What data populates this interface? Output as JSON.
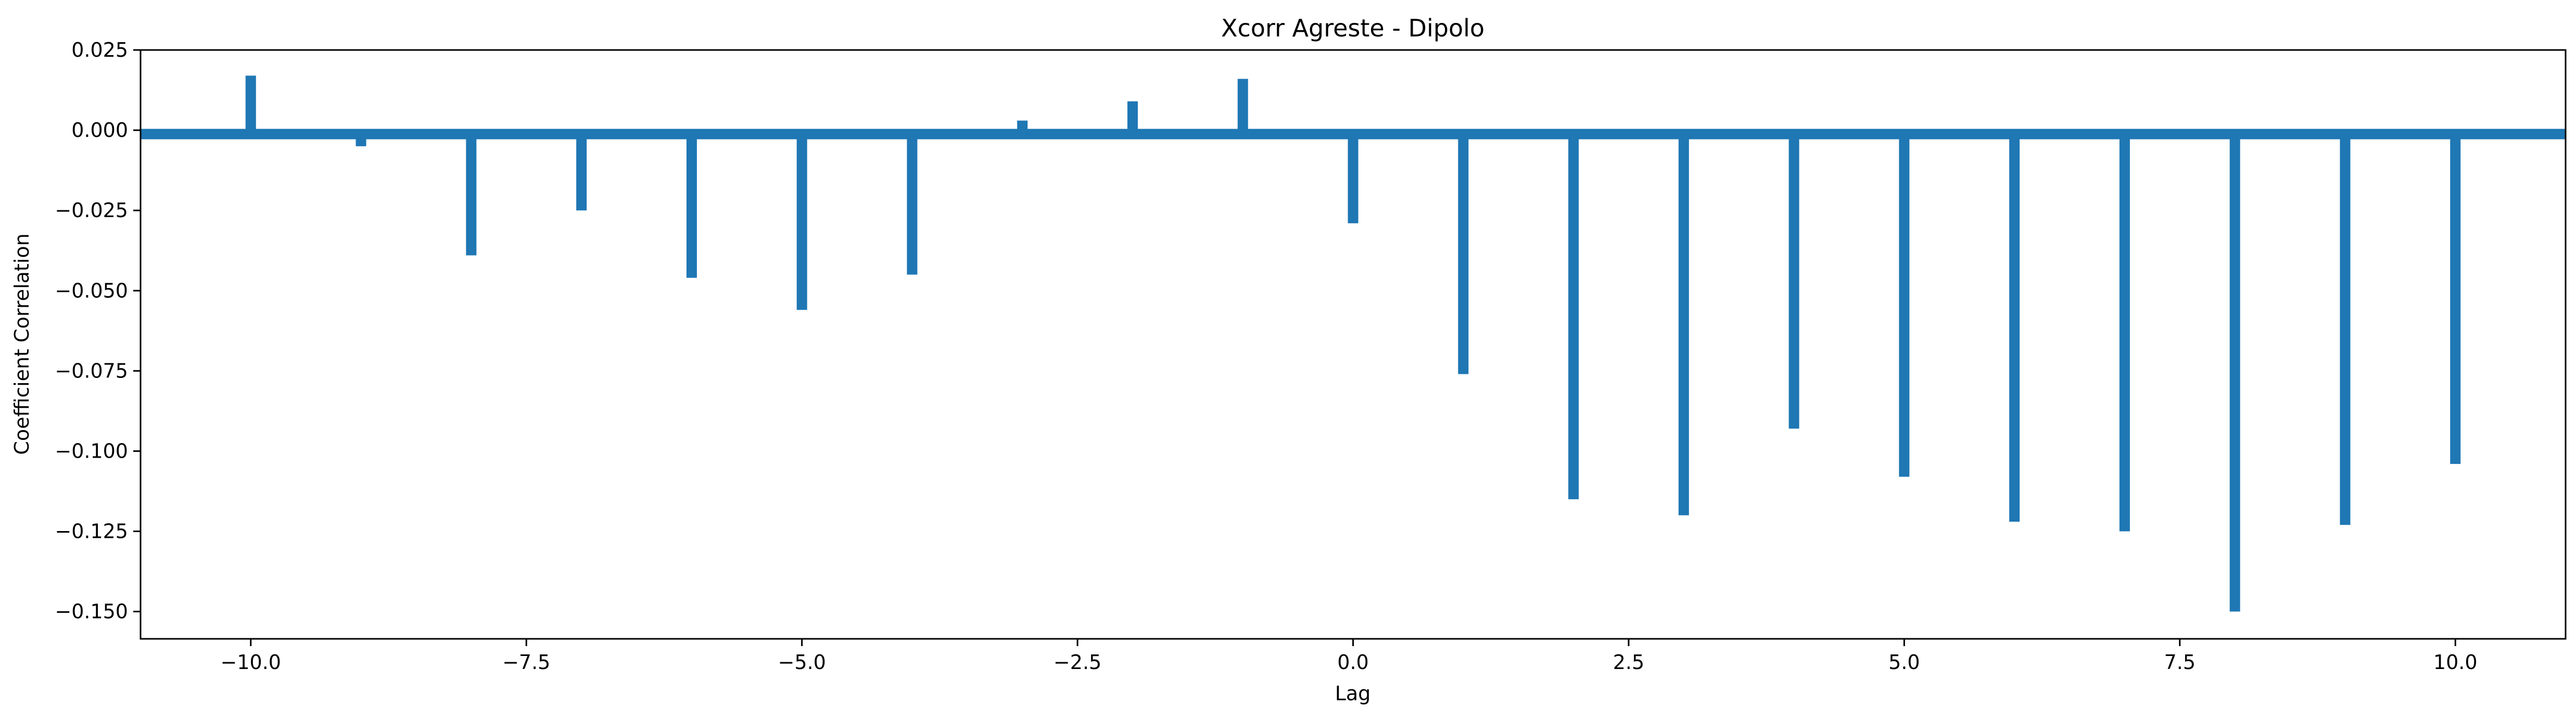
{
  "chart_data": {
    "type": "bar",
    "title": "Xcorr Agreste - Dipolo",
    "xlabel": "Lag",
    "ylabel": "Coefficient Correlation",
    "xlim": [
      -11,
      11
    ],
    "ylim": [
      -0.1585,
      0.025
    ],
    "xticks": [
      -10.0,
      -7.5,
      -5.0,
      -2.5,
      0.0,
      2.5,
      5.0,
      7.5,
      10.0
    ],
    "xtick_labels": [
      "−10.0",
      "−7.5",
      "−5.0",
      "−2.5",
      "0.0",
      "2.5",
      "5.0",
      "7.5",
      "10.0"
    ],
    "yticks": [
      0.025,
      0.0,
      -0.025,
      -0.05,
      -0.075,
      -0.1,
      -0.125,
      -0.15
    ],
    "ytick_labels": [
      "0.025",
      "0.000",
      "−0.025",
      "−0.050",
      "−0.075",
      "−0.100",
      "−0.125",
      "−0.150"
    ],
    "grid": false,
    "color": "#1f77b4",
    "baseline": -0.0012,
    "x": [
      -10,
      -9,
      -8,
      -7,
      -6,
      -5,
      -4,
      -3,
      -2,
      -1,
      0,
      1,
      2,
      3,
      4,
      5,
      6,
      7,
      8,
      9,
      10
    ],
    "values": [
      0.017,
      -0.005,
      -0.039,
      -0.025,
      -0.046,
      -0.056,
      -0.045,
      0.003,
      0.009,
      0.016,
      -0.029,
      -0.076,
      -0.115,
      -0.12,
      -0.093,
      -0.108,
      -0.122,
      -0.125,
      -0.15,
      -0.123,
      -0.104
    ]
  }
}
